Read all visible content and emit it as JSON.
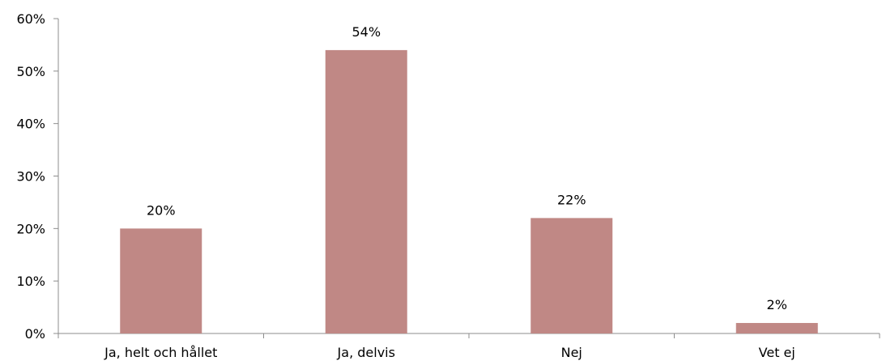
{
  "chart_data": {
    "type": "bar",
    "categories": [
      "Ja, helt och hållet",
      "Ja, delvis",
      "Nej",
      "Vet ej"
    ],
    "values": [
      20,
      54,
      22,
      2
    ],
    "data_labels": [
      "20%",
      "54%",
      "22%",
      "2%"
    ],
    "title": "",
    "xlabel": "",
    "ylabel": "",
    "ylim": [
      0,
      60
    ],
    "yticks": [
      0,
      10,
      20,
      30,
      40,
      50,
      60
    ],
    "ytick_labels": [
      "0%",
      "10%",
      "20%",
      "30%",
      "40%",
      "50%",
      "60%"
    ],
    "grid": false,
    "legend": "none",
    "bar_color": "#c08885",
    "axis_color": "#8c8c8c"
  }
}
